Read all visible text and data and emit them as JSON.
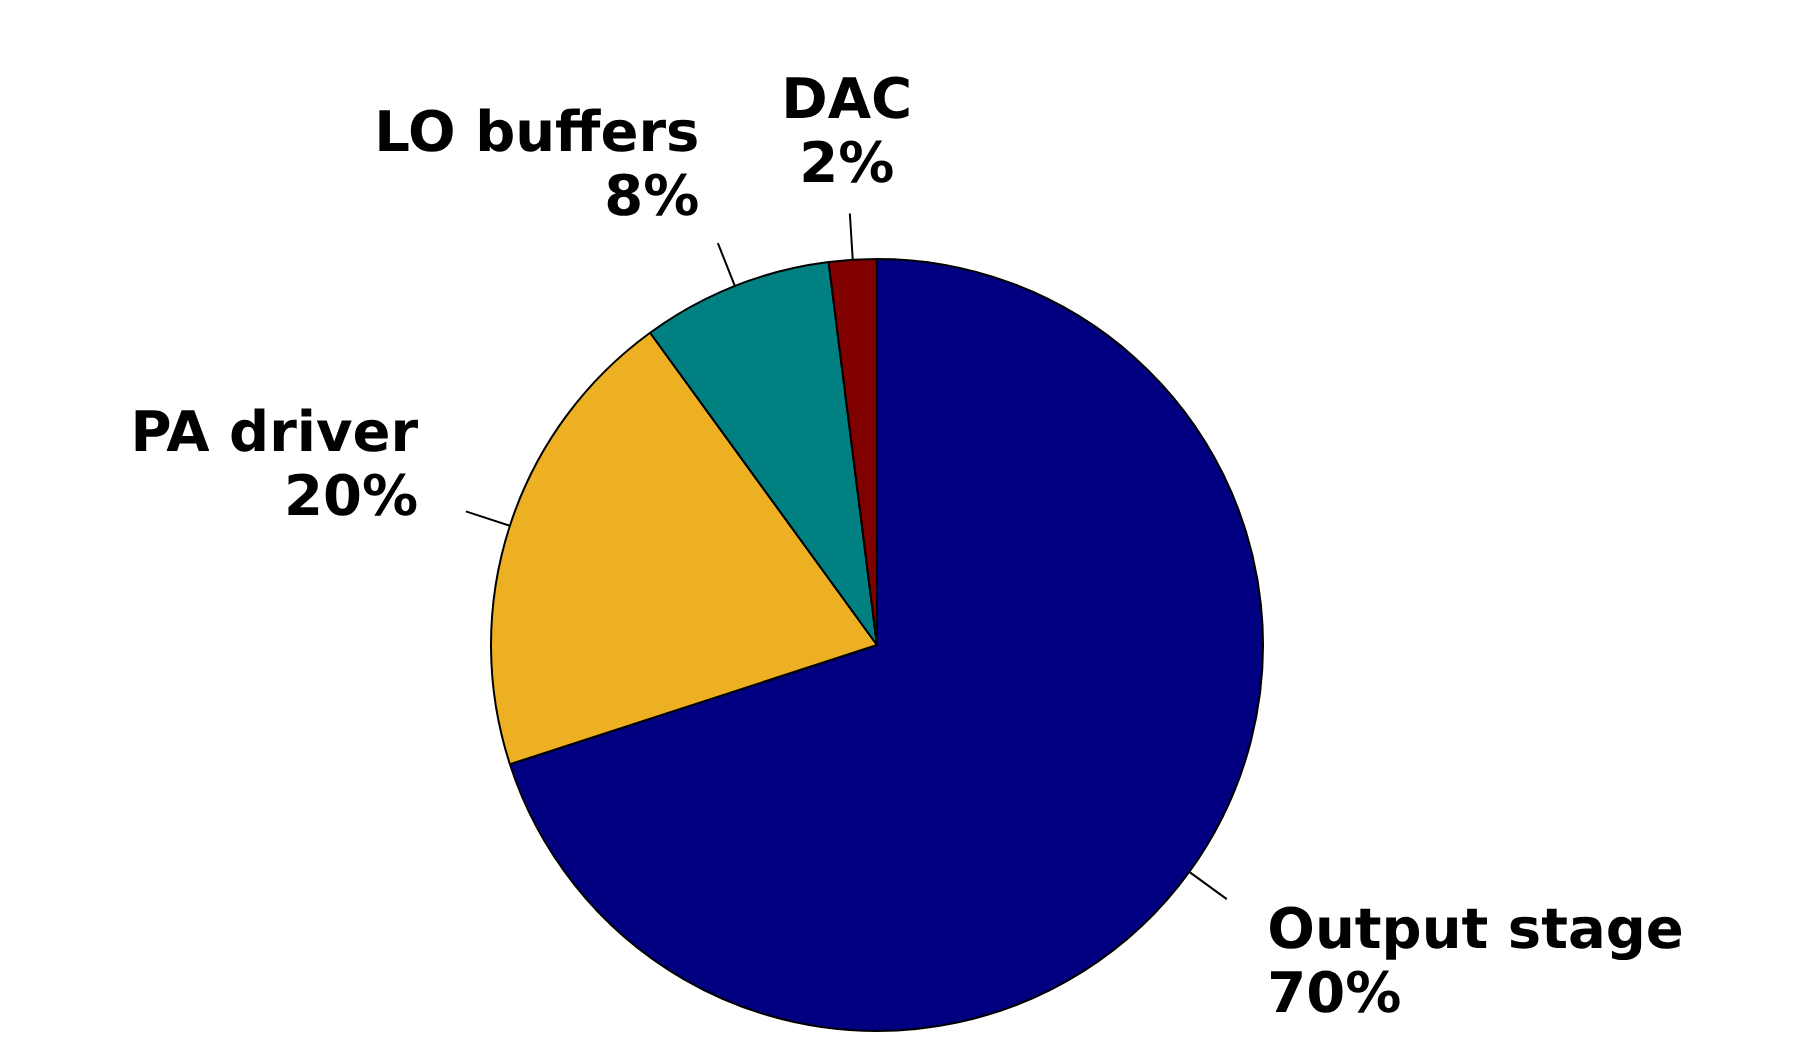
{
  "chart_data": {
    "type": "pie",
    "categories": [
      "Output stage",
      "PA driver",
      "LO buffers",
      "DAC"
    ],
    "values": [
      70,
      20,
      8,
      2
    ],
    "value_labels": [
      "70%",
      "20%",
      "8%",
      "2%"
    ],
    "colors": [
      "#000080",
      "#ecb022",
      "#008080",
      "#800000"
    ]
  }
}
